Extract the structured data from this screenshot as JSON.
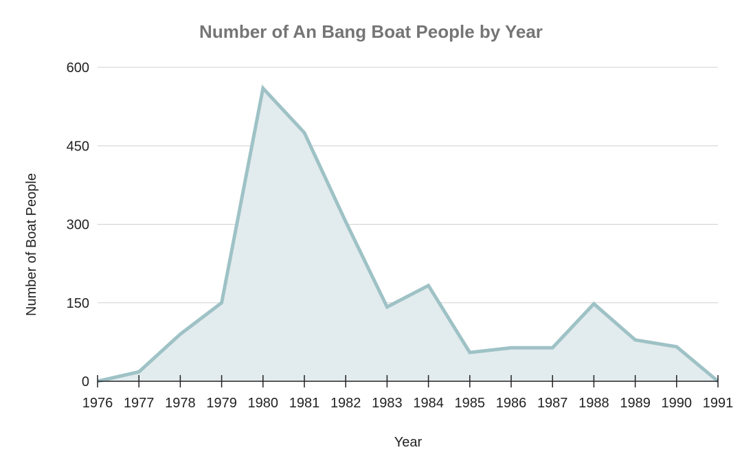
{
  "chart_data": {
    "type": "area",
    "title": "Number of An Bang Boat People by Year",
    "xlabel": "Year",
    "ylabel": "Number of Boat People",
    "categories": [
      "1976",
      "1977",
      "1978",
      "1979",
      "1980",
      "1981",
      "1982",
      "1983",
      "1984",
      "1985",
      "1986",
      "1987",
      "1988",
      "1989",
      "1990",
      "1991"
    ],
    "series": [
      {
        "values": [
          0,
          18,
          90,
          150,
          560,
          475,
          305,
          142,
          183,
          55,
          64,
          64,
          148,
          79,
          66,
          0
        ]
      }
    ],
    "ylim": [
      0,
      600
    ],
    "yticks": [
      "0",
      "150",
      "300",
      "450",
      "600"
    ],
    "grid": true,
    "legend": "none",
    "colors": {
      "line": "#9ec2c6",
      "fill": "#e2ebed",
      "grid": "#d0d0d0",
      "axis": "#222222",
      "title": "#757575"
    }
  }
}
